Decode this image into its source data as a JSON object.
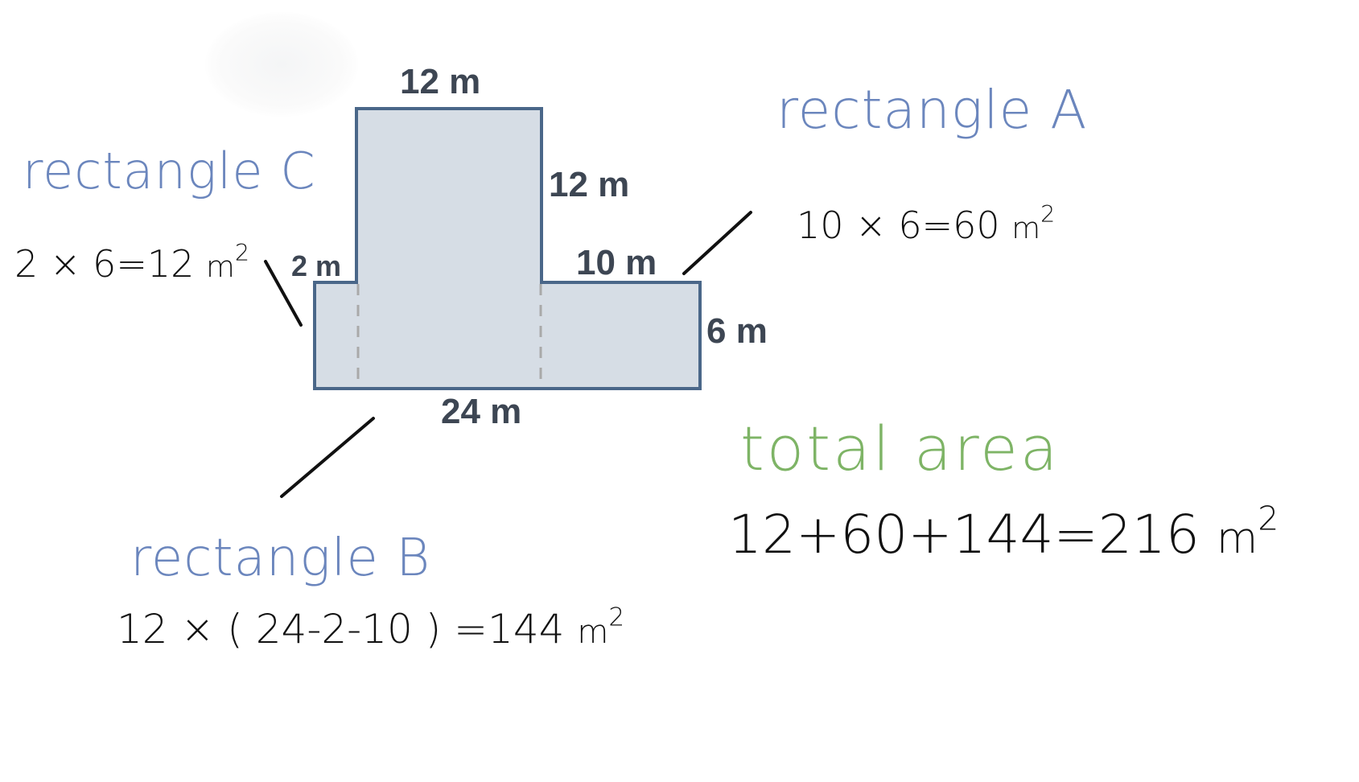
{
  "colors": {
    "shape_fill": "#d6dde5",
    "shape_stroke": "#4a6789",
    "divider": "#a9a9a9",
    "label_blue": "#6b86bd",
    "label_green": "#7eb466",
    "ink": "#111111",
    "dimension_text": "#3d4653"
  },
  "dimensions": {
    "top": "12 m",
    "tower_right": "12 m",
    "left_step": "2 m",
    "right_step": "10 m",
    "right_side": "6 m",
    "bottom": "24 m"
  },
  "rectangle_a": {
    "label": "rectangle A",
    "formula": "10 × 6=60",
    "unit": "m",
    "exponent": "2"
  },
  "rectangle_b": {
    "label": "rectangle B",
    "formula": "12 × ( 24-2-10 ) =144",
    "unit": "m",
    "exponent": "2"
  },
  "rectangle_c": {
    "label": "rectangle C",
    "formula": "2 × 6=12",
    "unit": "m",
    "exponent": "2"
  },
  "total": {
    "label": "total area",
    "formula": "12+60+144=216",
    "unit": "m",
    "exponent": "2"
  }
}
